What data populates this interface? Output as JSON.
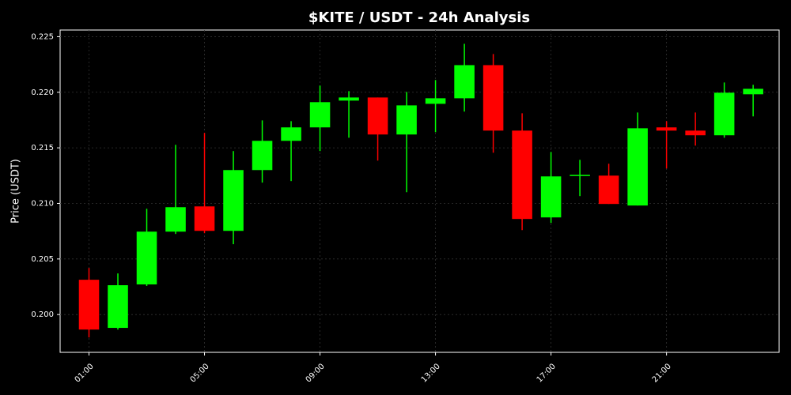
{
  "chart_data": {
    "type": "candlestick",
    "title": "$KITE / USDT - 24h Analysis",
    "y_label": "Price (USDT)",
    "x": [
      1,
      2,
      3,
      4,
      5,
      6,
      7,
      8,
      9,
      10,
      11,
      12,
      13,
      14,
      15,
      16,
      17,
      18,
      19,
      20,
      21,
      22,
      23,
      24
    ],
    "open": [
      0.20313,
      0.1988,
      0.20271,
      0.20746,
      0.20973,
      0.20753,
      0.213,
      0.21563,
      0.21684,
      0.21925,
      0.21953,
      0.2162,
      0.21896,
      0.21946,
      0.22244,
      0.21655,
      0.20874,
      0.2125,
      0.2125,
      0.20981,
      0.21684,
      0.21655,
      0.21613,
      0.21982
    ],
    "high": [
      0.20419,
      0.2037,
      0.20952,
      0.21527,
      0.21634,
      0.21471,
      0.21747,
      0.2174,
      0.2206,
      0.2201,
      0.21953,
      0.22003,
      0.2211,
      0.22436,
      0.22344,
      0.21811,
      0.21463,
      0.21392,
      0.21357,
      0.21818,
      0.2174,
      0.21818,
      0.22088,
      0.22067
    ],
    "low": [
      0.19794,
      0.19865,
      0.20257,
      0.20725,
      0.20732,
      0.20633,
      0.21187,
      0.21201,
      0.21471,
      0.21591,
      0.21385,
      0.21101,
      0.21641,
      0.21826,
      0.21456,
      0.2076,
      0.20824,
      0.21066,
      0.20995,
      0.20981,
      0.21314,
      0.2152,
      0.21591,
      0.21783
    ],
    "close": [
      0.19865,
      0.20264,
      0.20746,
      0.20966,
      0.20753,
      0.213,
      0.21563,
      0.21684,
      0.21911,
      0.21953,
      0.2162,
      0.21882,
      0.21946,
      0.22244,
      0.21655,
      0.2086,
      0.21243,
      0.21257,
      0.20995,
      0.21676,
      0.21655,
      0.21613,
      0.21996,
      0.22031
    ],
    "up_color": "#00ff00",
    "down_color": "#ff0000",
    "xlim": [
      0,
      24.9
    ],
    "ylim": [
      0.1966,
      0.2256
    ],
    "xticks": [
      {
        "value": 1,
        "label": "01:00"
      },
      {
        "value": 5,
        "label": "05:00"
      },
      {
        "value": 9,
        "label": "09:00"
      },
      {
        "value": 13,
        "label": "13:00"
      },
      {
        "value": 17,
        "label": "17:00"
      },
      {
        "value": 21,
        "label": "21:00"
      }
    ],
    "yticks": [
      {
        "value": 0.2,
        "label": "0.200"
      },
      0.205,
      {
        "value": 0.21,
        "label": "0.210"
      },
      0.215,
      {
        "value": 0.22,
        "label": "0.220"
      },
      0.225
    ],
    "grid": true
  }
}
